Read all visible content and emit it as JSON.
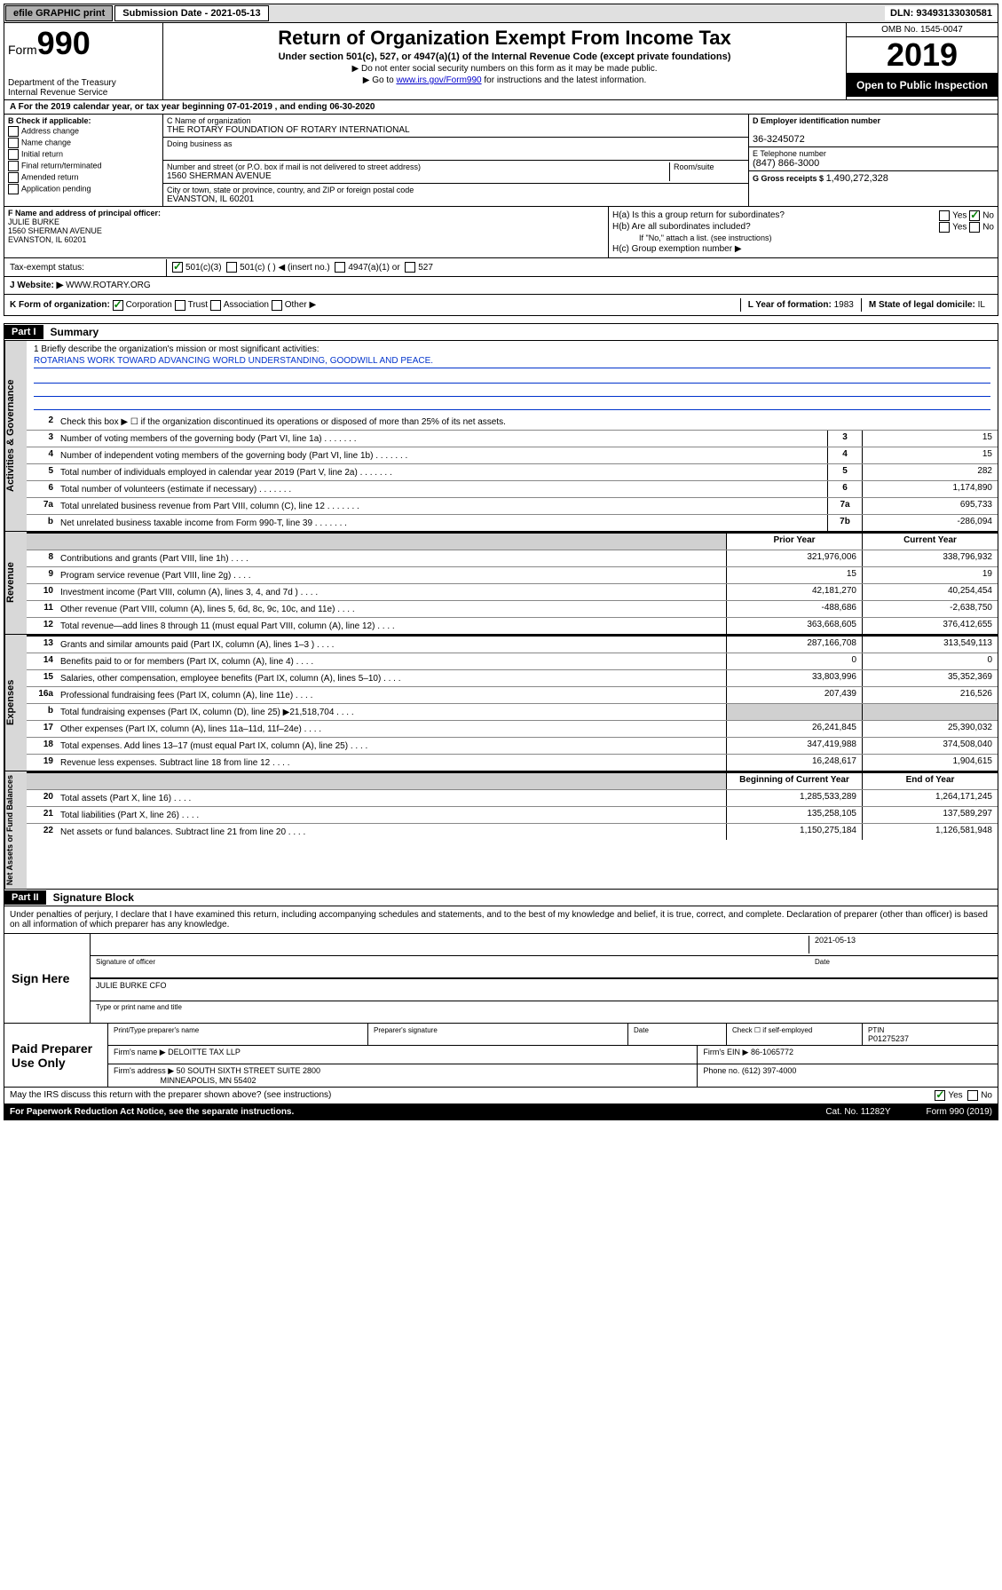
{
  "top": {
    "efile": "efile GRAPHIC print",
    "sub_label": "Submission Date - 2021-05-13",
    "dln": "DLN: 93493133030581"
  },
  "header": {
    "form_label": "Form",
    "form_num": "990",
    "dept": "Department of the Treasury\nInternal Revenue Service",
    "title": "Return of Organization Exempt From Income Tax",
    "sub": "Under section 501(c), 527, or 4947(a)(1) of the Internal Revenue Code (except private foundations)",
    "arrow1": "▶ Do not enter social security numbers on this form as it may be made public.",
    "arrow2_pre": "▶ Go to ",
    "arrow2_link": "www.irs.gov/Form990",
    "arrow2_post": " for instructions and the latest information.",
    "omb": "OMB No. 1545-0047",
    "year": "2019",
    "open_public": "Open to Public Inspection"
  },
  "period": "A For the 2019 calendar year, or tax year beginning 07-01-2019   , and ending 06-30-2020",
  "block_b": {
    "label": "B Check if applicable:",
    "items": [
      "Address change",
      "Name change",
      "Initial return",
      "Final return/terminated",
      "Amended return",
      "Application pending"
    ]
  },
  "block_c": {
    "name_label": "C Name of organization",
    "name": "THE ROTARY FOUNDATION OF ROTARY INTERNATIONAL",
    "dba_label": "Doing business as",
    "addr_label": "Number and street (or P.O. box if mail is not delivered to street address)",
    "room_label": "Room/suite",
    "addr": "1560 SHERMAN AVENUE",
    "city_label": "City or town, state or province, country, and ZIP or foreign postal code",
    "city": "EVANSTON, IL  60201"
  },
  "block_d": {
    "ein_label": "D Employer identification number",
    "ein": "36-3245072",
    "tel_label": "E Telephone number",
    "tel": "(847) 866-3000",
    "gross_label": "G Gross receipts $",
    "gross": "1,490,272,328"
  },
  "block_f": {
    "label": "F  Name and address of principal officer:",
    "name": "JULIE BURKE",
    "addr1": "1560 SHERMAN AVENUE",
    "addr2": "EVANSTON, IL  60201"
  },
  "block_h": {
    "ha": "H(a)  Is this a group return for subordinates?",
    "hb": "H(b)  Are all subordinates included?",
    "hb_note": "If \"No,\" attach a list. (see instructions)",
    "hc": "H(c)  Group exemption number ▶"
  },
  "status": {
    "label": "Tax-exempt status:",
    "opts": [
      "501(c)(3)",
      "501(c) (  ) ◀ (insert no.)",
      "4947(a)(1) or",
      "527"
    ]
  },
  "website": {
    "label": "J  Website: ▶",
    "value": "WWW.ROTARY.ORG"
  },
  "kform": {
    "label": "K Form of organization:",
    "opts": [
      "Corporation",
      "Trust",
      "Association",
      "Other ▶"
    ],
    "l_label": "L Year of formation:",
    "l_val": "1983",
    "m_label": "M State of legal domicile:",
    "m_val": "IL"
  },
  "part1": {
    "header": "Part I",
    "title": "Summary",
    "mission_label": "1  Briefly describe the organization's mission or most significant activities:",
    "mission": "ROTARIANS WORK TOWARD ADVANCING WORLD UNDERSTANDING, GOODWILL AND PEACE.",
    "line2": "Check this box ▶ ☐  if the organization discontinued its operations or disposed of more than 25% of its net assets."
  },
  "gov_lines": [
    {
      "n": "3",
      "d": "Number of voting members of the governing body (Part VI, line 1a)",
      "c": "3",
      "v": "15"
    },
    {
      "n": "4",
      "d": "Number of independent voting members of the governing body (Part VI, line 1b)",
      "c": "4",
      "v": "15"
    },
    {
      "n": "5",
      "d": "Total number of individuals employed in calendar year 2019 (Part V, line 2a)",
      "c": "5",
      "v": "282"
    },
    {
      "n": "6",
      "d": "Total number of volunteers (estimate if necessary)",
      "c": "6",
      "v": "1,174,890"
    },
    {
      "n": "7a",
      "d": "Total unrelated business revenue from Part VIII, column (C), line 12",
      "c": "7a",
      "v": "695,733"
    },
    {
      "n": "b",
      "d": "Net unrelated business taxable income from Form 990-T, line 39",
      "c": "7b",
      "v": "-286,094"
    }
  ],
  "rev_header": {
    "prior": "Prior Year",
    "current": "Current Year"
  },
  "rev_lines": [
    {
      "n": "8",
      "d": "Contributions and grants (Part VIII, line 1h)",
      "p": "321,976,006",
      "c": "338,796,932"
    },
    {
      "n": "9",
      "d": "Program service revenue (Part VIII, line 2g)",
      "p": "15",
      "c": "19"
    },
    {
      "n": "10",
      "d": "Investment income (Part VIII, column (A), lines 3, 4, and 7d )",
      "p": "42,181,270",
      "c": "40,254,454"
    },
    {
      "n": "11",
      "d": "Other revenue (Part VIII, column (A), lines 5, 6d, 8c, 9c, 10c, and 11e)",
      "p": "-488,686",
      "c": "-2,638,750"
    },
    {
      "n": "12",
      "d": "Total revenue—add lines 8 through 11 (must equal Part VIII, column (A), line 12)",
      "p": "363,668,605",
      "c": "376,412,655"
    }
  ],
  "exp_lines": [
    {
      "n": "13",
      "d": "Grants and similar amounts paid (Part IX, column (A), lines 1–3 )",
      "p": "287,166,708",
      "c": "313,549,113"
    },
    {
      "n": "14",
      "d": "Benefits paid to or for members (Part IX, column (A), line 4)",
      "p": "0",
      "c": "0"
    },
    {
      "n": "15",
      "d": "Salaries, other compensation, employee benefits (Part IX, column (A), lines 5–10)",
      "p": "33,803,996",
      "c": "35,352,369"
    },
    {
      "n": "16a",
      "d": "Professional fundraising fees (Part IX, column (A), line 11e)",
      "p": "207,439",
      "c": "216,526"
    },
    {
      "n": "b",
      "d": "Total fundraising expenses (Part IX, column (D), line 25) ▶21,518,704",
      "p": "",
      "c": "",
      "shaded": true
    },
    {
      "n": "17",
      "d": "Other expenses (Part IX, column (A), lines 11a–11d, 11f–24e)",
      "p": "26,241,845",
      "c": "25,390,032"
    },
    {
      "n": "18",
      "d": "Total expenses. Add lines 13–17 (must equal Part IX, column (A), line 25)",
      "p": "347,419,988",
      "c": "374,508,040"
    },
    {
      "n": "19",
      "d": "Revenue less expenses. Subtract line 18 from line 12",
      "p": "16,248,617",
      "c": "1,904,615"
    }
  ],
  "net_header": {
    "prior": "Beginning of Current Year",
    "current": "End of Year"
  },
  "net_lines": [
    {
      "n": "20",
      "d": "Total assets (Part X, line 16)",
      "p": "1,285,533,289",
      "c": "1,264,171,245"
    },
    {
      "n": "21",
      "d": "Total liabilities (Part X, line 26)",
      "p": "135,258,105",
      "c": "137,589,297"
    },
    {
      "n": "22",
      "d": "Net assets or fund balances. Subtract line 21 from line 20",
      "p": "1,150,275,184",
      "c": "1,126,581,948"
    }
  ],
  "side_tabs": {
    "gov": "Activities & Governance",
    "rev": "Revenue",
    "exp": "Expenses",
    "net": "Net Assets or Fund Balances"
  },
  "part2": {
    "header": "Part II",
    "title": "Signature Block",
    "declaration": "Under penalties of perjury, I declare that I have examined this return, including accompanying schedules and statements, and to the best of my knowledge and belief, it is true, correct, and complete. Declaration of preparer (other than officer) is based on all information of which preparer has any knowledge."
  },
  "sign": {
    "label": "Sign Here",
    "sig_label": "Signature of officer",
    "date": "2021-05-13",
    "date_label": "Date",
    "name": "JULIE BURKE CFO",
    "name_label": "Type or print name and title"
  },
  "prep": {
    "label": "Paid Preparer Use Only",
    "h1": "Print/Type preparer's name",
    "h2": "Preparer's signature",
    "h3": "Date",
    "h4_a": "Check ☐ if self-employed",
    "h5": "PTIN",
    "ptin": "P01275237",
    "firm_name_label": "Firm's name   ▶",
    "firm_name": "DELOITTE TAX LLP",
    "firm_ein_label": "Firm's EIN ▶",
    "firm_ein": "86-1065772",
    "firm_addr_label": "Firm's address ▶",
    "firm_addr1": "50 SOUTH SIXTH STREET SUITE 2800",
    "firm_addr2": "MINNEAPOLIS, MN  55402",
    "phone_label": "Phone no.",
    "phone": "(612) 397-4000"
  },
  "discuss": "May the IRS discuss this return with the preparer shown above? (see instructions)",
  "footer": {
    "left": "For Paperwork Reduction Act Notice, see the separate instructions.",
    "center": "Cat. No. 11282Y",
    "right": "Form 990 (2019)"
  }
}
